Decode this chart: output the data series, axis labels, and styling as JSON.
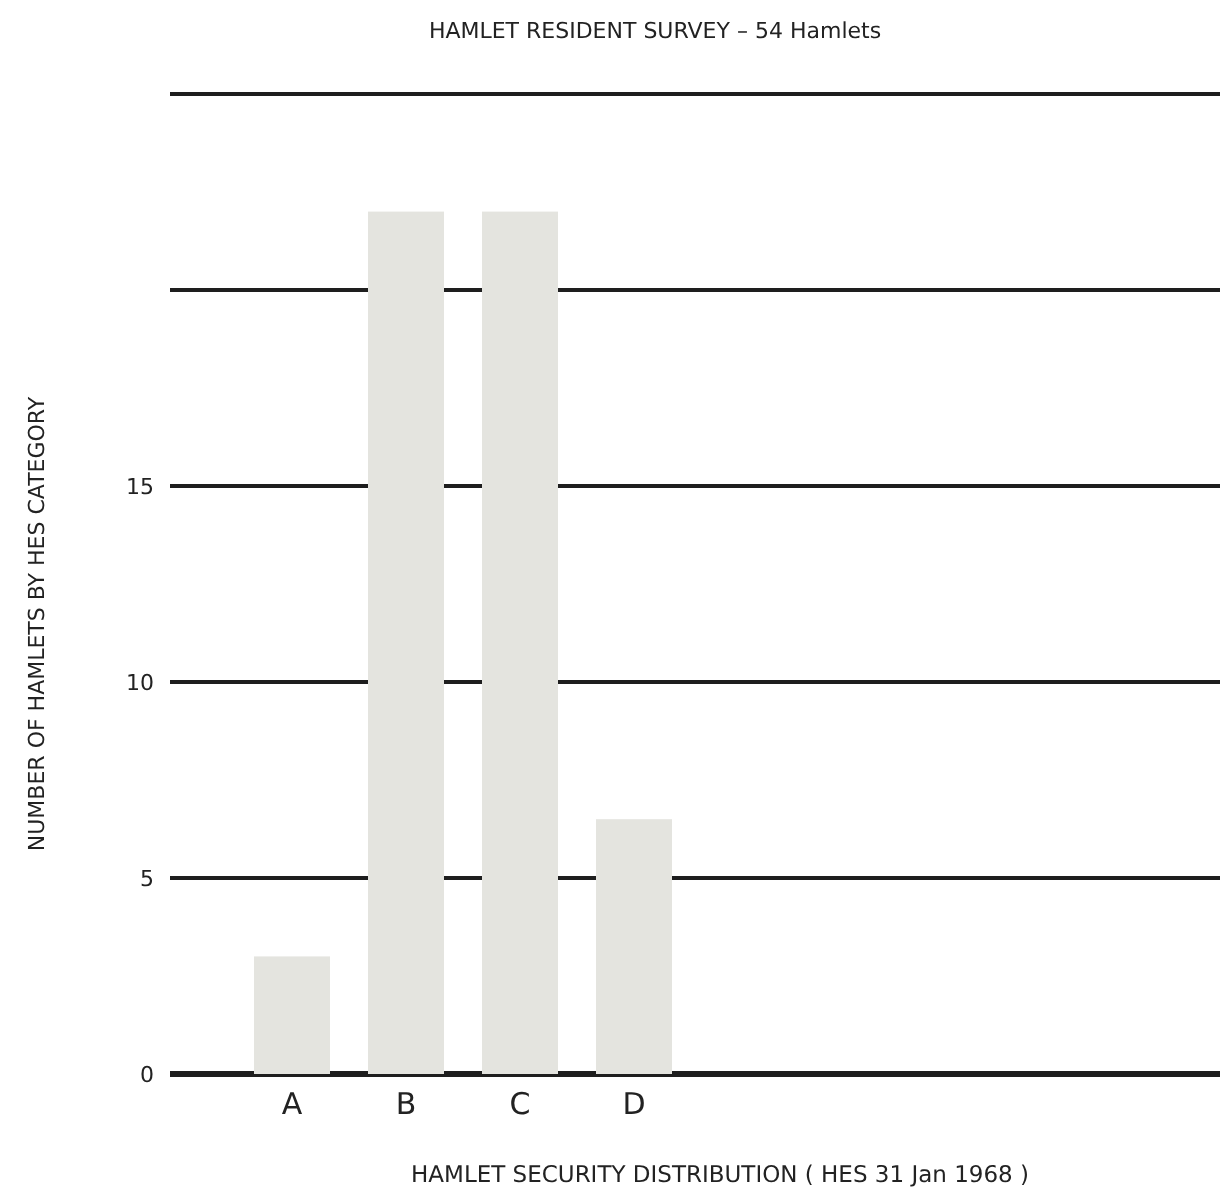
{
  "chart_data": {
    "type": "bar",
    "title": "HAMLET RESIDENT SURVEY – 54 Hamlets",
    "xlabel": "HAMLET SECURITY DISTRIBUTION ( HES 31 Jan 1968 )",
    "ylabel": "NUMBER OF HAMLETS BY HES CATEGORY",
    "categories": [
      "A",
      "B",
      "C",
      "D"
    ],
    "values": [
      3,
      22,
      22,
      6.5
    ],
    "color": "#e4e4df",
    "ylim": [
      0,
      25
    ],
    "yticks": [
      0,
      5,
      10,
      15,
      {
        "value": 20,
        "label": null
      },
      {
        "value": 25,
        "label": null
      }
    ],
    "grid": "y"
  }
}
